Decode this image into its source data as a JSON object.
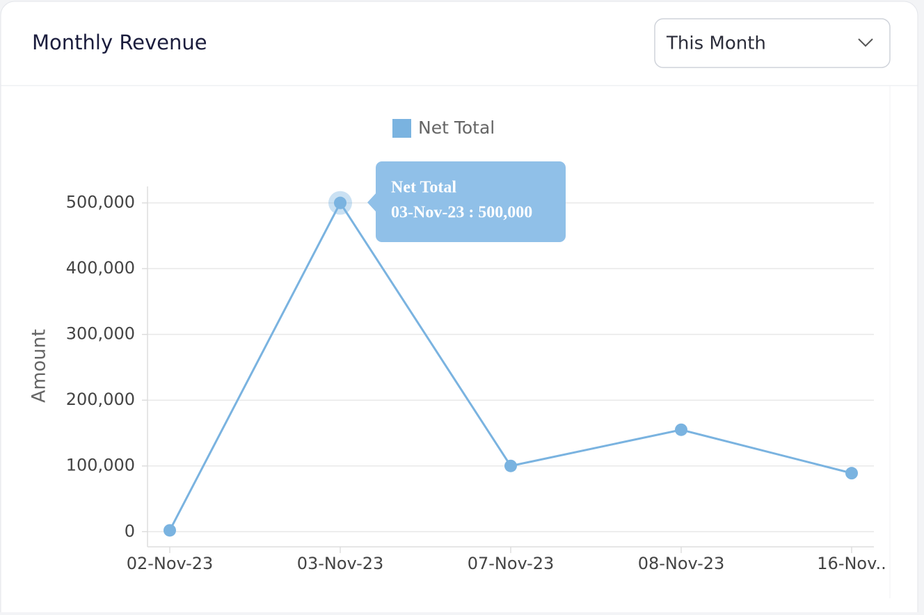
{
  "dropdown": {
    "selected": "This Month"
  },
  "chart_data": {
    "type": "line",
    "title": "Monthly Revenue",
    "ylabel": "Amount",
    "categories": [
      "02-Nov-23",
      "03-Nov-23",
      "07-Nov-23",
      "08-Nov-23",
      "16-Nov.."
    ],
    "series": [
      {
        "name": "Net Total",
        "color": "#7ab3e0",
        "values": [
          2000,
          500000,
          100000,
          155000,
          89000
        ]
      }
    ],
    "ylim": [
      -23000,
      525000
    ],
    "yticks": [
      0,
      {
        "value": 100000,
        "label": "100,000"
      },
      {
        "value": 200000,
        "label": "200,000"
      },
      {
        "value": 300000,
        "label": "300,000"
      },
      {
        "value": 400000,
        "label": "400,000"
      },
      {
        "value": 500000,
        "label": "500,000"
      }
    ],
    "grid": true,
    "legend": "top",
    "tooltip": {
      "title": "Net Total",
      "text": "03-Nov-23 : 500,000"
    }
  }
}
